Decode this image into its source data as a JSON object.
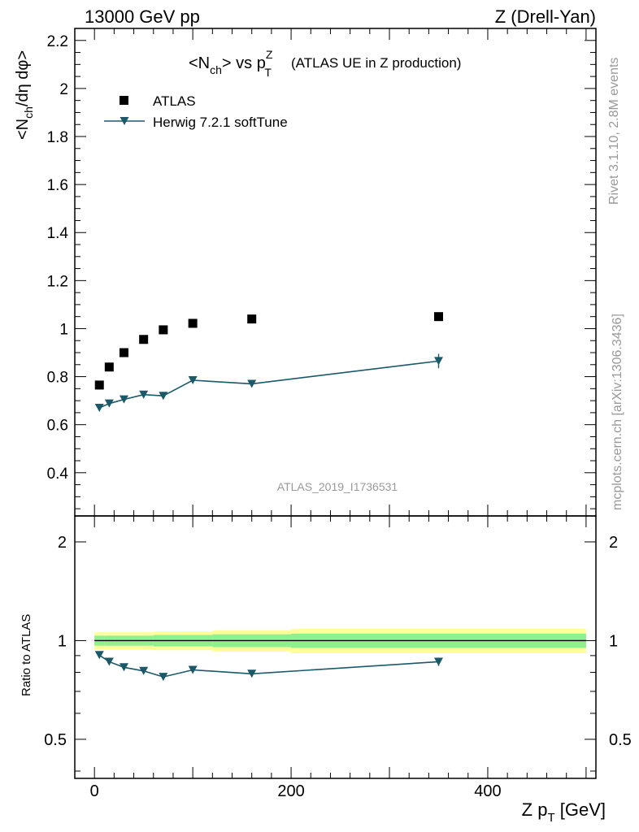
{
  "header": {
    "left": "13000 GeV pp",
    "right": "Z (Drell-Yan)"
  },
  "side_text": {
    "rivet": "Rivet 3.1.10,  2.8M events",
    "source": "mcplots.cern.ch [arXiv:1306.3436]"
  },
  "watermark": "ATLAS_2019_I1736531",
  "chart_data": [
    {
      "type": "scatter",
      "panel": "main",
      "title_main": "<N",
      "title_sub1": "ch",
      "title_mid": "> vs p",
      "title_sup": "Z",
      "title_sub2": "T",
      "title_rest": "(ATLAS UE in Z production)",
      "ylabel_parts": [
        "<N",
        "ch",
        "/dη dφ>"
      ],
      "xlim": [
        -20,
        510
      ],
      "ylim": [
        0.22,
        2.25
      ],
      "y_ticks": [
        0.4,
        0.6,
        0.8,
        1,
        1.2,
        1.4,
        1.6,
        1.8,
        2,
        2.2
      ],
      "y_tick_labels": [
        "0.4",
        "0.6",
        "0.8",
        "1",
        "1.2",
        "1.4",
        "1.6",
        "1.8",
        "2",
        "2.2"
      ],
      "legend_position": "top-left",
      "series": [
        {
          "name": "ATLAS",
          "marker": "square",
          "color": "#000000",
          "x": [
            5,
            15,
            30,
            50,
            70,
            100,
            160,
            350
          ],
          "y": [
            0.765,
            0.84,
            0.9,
            0.955,
            0.995,
            1.022,
            1.04,
            1.05
          ]
        },
        {
          "name": "Herwig 7.2.1 softTune",
          "marker": "triangle-down",
          "color": "#1b5868",
          "x": [
            5,
            15,
            30,
            50,
            70,
            100,
            160,
            350
          ],
          "y": [
            0.67,
            0.688,
            0.705,
            0.725,
            0.72,
            0.785,
            0.77,
            0.865
          ],
          "yerr": [
            0.004,
            0.004,
            0.004,
            0.005,
            0.005,
            0.006,
            0.008,
            0.03
          ]
        }
      ]
    },
    {
      "type": "line",
      "panel": "ratio",
      "ylabel": "Ratio to ATLAS",
      "xlabel_parts": [
        "Z p",
        "T",
        " [GeV]"
      ],
      "xlim": [
        -20,
        510
      ],
      "ylim": [
        0.38,
        2.4
      ],
      "log_y": true,
      "y_ticks": [
        0.5,
        1,
        2
      ],
      "y_tick_labels": [
        "0.5",
        "1",
        "2"
      ],
      "x_ticks": [
        0,
        200,
        400
      ],
      "x_tick_labels": [
        "0",
        "200",
        "400"
      ],
      "reference_line": 1,
      "bands": {
        "bin_edges": [
          0,
          10,
          20,
          40,
          60,
          80,
          120,
          200,
          500
        ],
        "inner_half": [
          0.035,
          0.035,
          0.035,
          0.035,
          0.04,
          0.04,
          0.045,
          0.05
        ],
        "outer_half": [
          0.06,
          0.06,
          0.06,
          0.06,
          0.065,
          0.065,
          0.075,
          0.085
        ],
        "inner_color": "#8ef08e",
        "outer_color": "#ffff99"
      },
      "series": [
        {
          "name": "Herwig 7.2.1 softTune",
          "marker": "triangle-down",
          "color": "#1b5868",
          "x": [
            5,
            15,
            30,
            50,
            70,
            100,
            160,
            350
          ],
          "y": [
            0.903,
            0.862,
            0.829,
            0.808,
            0.775,
            0.814,
            0.792,
            0.862
          ],
          "yerr": [
            0.006,
            0.006,
            0.006,
            0.006,
            0.006,
            0.007,
            0.009,
            0.025
          ]
        }
      ]
    }
  ]
}
